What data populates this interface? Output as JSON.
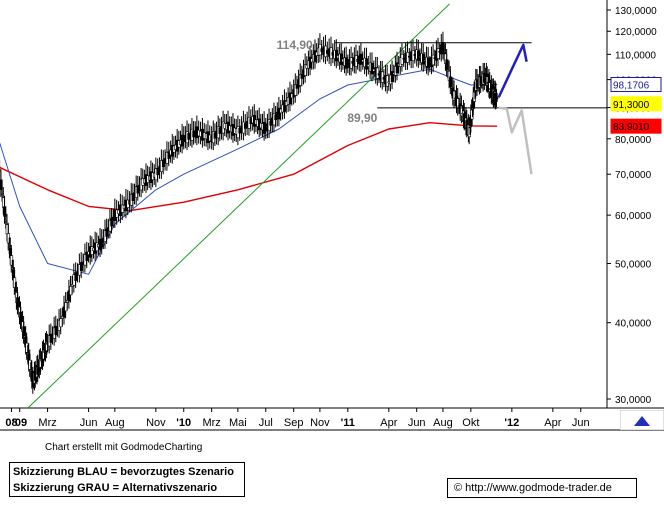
{
  "chart_data": {
    "type": "candlestick",
    "y_scale": "log",
    "ylim": [
      29000,
      135000
    ],
    "y_ticks": [
      {
        "value": 30000,
        "label": "30,0000"
      },
      {
        "value": 40000,
        "label": "40,0000"
      },
      {
        "value": 50000,
        "label": "50,0000"
      },
      {
        "value": 60000,
        "label": "60,0000"
      },
      {
        "value": 70000,
        "label": "70,0000"
      },
      {
        "value": 80000,
        "label": "80,0000"
      },
      {
        "value": 90000,
        "label": "90,0000"
      },
      {
        "value": 100000,
        "label": "100,0000"
      },
      {
        "value": 110000,
        "label": "110,0000"
      },
      {
        "value": 120000,
        "label": "120,0000"
      },
      {
        "value": 130000,
        "label": "130,0000"
      }
    ],
    "x_ticks": [
      {
        "t": 2008.95,
        "label": "08",
        "bold": true
      },
      {
        "t": 2009.0,
        "label": "'09",
        "bold": true
      },
      {
        "t": 2009.17,
        "label": "Mrz",
        "bold": false
      },
      {
        "t": 2009.42,
        "label": "Jun",
        "bold": false
      },
      {
        "t": 2009.58,
        "label": "Aug",
        "bold": false
      },
      {
        "t": 2009.83,
        "label": "Nov",
        "bold": false
      },
      {
        "t": 2010.0,
        "label": "'10",
        "bold": true
      },
      {
        "t": 2010.17,
        "label": "Mrz",
        "bold": false
      },
      {
        "t": 2010.33,
        "label": "Mai",
        "bold": false
      },
      {
        "t": 2010.5,
        "label": "Jul",
        "bold": false
      },
      {
        "t": 2010.67,
        "label": "Sep",
        "bold": false
      },
      {
        "t": 2010.83,
        "label": "Nov",
        "bold": false
      },
      {
        "t": 2011.0,
        "label": "'11",
        "bold": true
      },
      {
        "t": 2011.25,
        "label": "Apr",
        "bold": false
      },
      {
        "t": 2011.42,
        "label": "Jun",
        "bold": false
      },
      {
        "t": 2011.58,
        "label": "Aug",
        "bold": false
      },
      {
        "t": 2011.75,
        "label": "Okt",
        "bold": false
      },
      {
        "t": 2012.0,
        "label": "'12",
        "bold": true
      },
      {
        "t": 2012.25,
        "label": "Apr",
        "bold": false
      },
      {
        "t": 2012.42,
        "label": "Jun",
        "bold": false
      }
    ],
    "price_path": [
      {
        "t": 2008.87,
        "v": 72000
      },
      {
        "t": 2008.93,
        "v": 55000
      },
      {
        "t": 2008.98,
        "v": 44000
      },
      {
        "t": 2009.03,
        "v": 38000
      },
      {
        "t": 2009.08,
        "v": 32000
      },
      {
        "t": 2009.12,
        "v": 34000
      },
      {
        "t": 2009.17,
        "v": 37000
      },
      {
        "t": 2009.25,
        "v": 40000
      },
      {
        "t": 2009.33,
        "v": 47000
      },
      {
        "t": 2009.42,
        "v": 52000
      },
      {
        "t": 2009.5,
        "v": 54000
      },
      {
        "t": 2009.58,
        "v": 60000
      },
      {
        "t": 2009.67,
        "v": 63000
      },
      {
        "t": 2009.75,
        "v": 68000
      },
      {
        "t": 2009.83,
        "v": 70000
      },
      {
        "t": 2009.92,
        "v": 76000
      },
      {
        "t": 2010.0,
        "v": 80000
      },
      {
        "t": 2010.08,
        "v": 82000
      },
      {
        "t": 2010.17,
        "v": 80000
      },
      {
        "t": 2010.25,
        "v": 84000
      },
      {
        "t": 2010.33,
        "v": 82000
      },
      {
        "t": 2010.42,
        "v": 86000
      },
      {
        "t": 2010.5,
        "v": 83000
      },
      {
        "t": 2010.58,
        "v": 88000
      },
      {
        "t": 2010.67,
        "v": 95000
      },
      {
        "t": 2010.75,
        "v": 105000
      },
      {
        "t": 2010.83,
        "v": 112000
      },
      {
        "t": 2010.92,
        "v": 110000
      },
      {
        "t": 2011.0,
        "v": 106000
      },
      {
        "t": 2011.08,
        "v": 108000
      },
      {
        "t": 2011.17,
        "v": 103000
      },
      {
        "t": 2011.25,
        "v": 99000
      },
      {
        "t": 2011.33,
        "v": 108000
      },
      {
        "t": 2011.42,
        "v": 110000
      },
      {
        "t": 2011.5,
        "v": 106000
      },
      {
        "t": 2011.58,
        "v": 113000
      },
      {
        "t": 2011.64,
        "v": 95000
      },
      {
        "t": 2011.7,
        "v": 88000
      },
      {
        "t": 2011.74,
        "v": 82000
      },
      {
        "t": 2011.78,
        "v": 98000
      },
      {
        "t": 2011.84,
        "v": 101000
      },
      {
        "t": 2011.88,
        "v": 95000
      },
      {
        "t": 2011.91,
        "v": 93000
      }
    ],
    "sma_blue": [
      {
        "t": 2008.87,
        "v": 80000
      },
      {
        "t": 2009.0,
        "v": 62000
      },
      {
        "t": 2009.17,
        "v": 50000
      },
      {
        "t": 2009.42,
        "v": 48000
      },
      {
        "t": 2009.58,
        "v": 58000
      },
      {
        "t": 2009.83,
        "v": 66000
      },
      {
        "t": 2010.0,
        "v": 70000
      },
      {
        "t": 2010.33,
        "v": 77000
      },
      {
        "t": 2010.58,
        "v": 83000
      },
      {
        "t": 2010.83,
        "v": 93000
      },
      {
        "t": 2011.0,
        "v": 98000
      },
      {
        "t": 2011.25,
        "v": 101000
      },
      {
        "t": 2011.5,
        "v": 104000
      },
      {
        "t": 2011.62,
        "v": 101000
      },
      {
        "t": 2011.75,
        "v": 98000
      },
      {
        "t": 2011.91,
        "v": 98170
      }
    ],
    "sma_red": [
      {
        "t": 2008.87,
        "v": 72000
      },
      {
        "t": 2009.17,
        "v": 66000
      },
      {
        "t": 2009.42,
        "v": 62000
      },
      {
        "t": 2009.67,
        "v": 61000
      },
      {
        "t": 2010.0,
        "v": 63000
      },
      {
        "t": 2010.33,
        "v": 66000
      },
      {
        "t": 2010.67,
        "v": 70000
      },
      {
        "t": 2011.0,
        "v": 78000
      },
      {
        "t": 2011.25,
        "v": 83000
      },
      {
        "t": 2011.5,
        "v": 85000
      },
      {
        "t": 2011.75,
        "v": 84000
      },
      {
        "t": 2011.91,
        "v": 83901
      }
    ],
    "trendline_green": [
      {
        "t": 2009.05,
        "v": 29000
      },
      {
        "t": 2011.62,
        "v": 133000
      }
    ],
    "resistance": {
      "value": 114900,
      "label": "114,90",
      "t_start": 2010.92,
      "t_end": 2012.12
    },
    "support": {
      "value": 89900,
      "label": "89,90",
      "t_start": 2011.18,
      "t_end": 2012.55
    },
    "scenario_blue": [
      {
        "t": 2011.92,
        "v": 93500
      },
      {
        "t": 2012.0,
        "v": 104000
      },
      {
        "t": 2012.07,
        "v": 114000
      },
      {
        "t": 2012.09,
        "v": 107000
      }
    ],
    "scenario_gray": [
      {
        "t": 2011.92,
        "v": 90000
      },
      {
        "t": 2011.97,
        "v": 89500
      },
      {
        "t": 2012.0,
        "v": 82000
      },
      {
        "t": 2012.06,
        "v": 89000
      },
      {
        "t": 2012.12,
        "v": 70000
      }
    ],
    "price_labels": [
      {
        "label": "98,1706",
        "value": 98170,
        "bg": "#ffffff",
        "fg": "#1a1aa0",
        "border": "#1a1aa0"
      },
      {
        "label": "91,3000",
        "value": 91300,
        "bg": "#ffff00",
        "fg": "#000000",
        "border": "#ffff00"
      },
      {
        "label": "83,9010",
        "value": 83901,
        "bg": "#ff0000",
        "fg": "#000000",
        "border": "#ff0000"
      }
    ],
    "colors": {
      "price": "#000000",
      "sma_blue": "#3050c0",
      "sma_red": "#e00000",
      "trendline": "#20a020",
      "level_lines": "#000000",
      "scenario_blue": "#2020c0",
      "scenario_gray": "#c0c0c0",
      "annotation_text": "#808080"
    }
  },
  "credit": "Chart erstellt mit GodmodeCharting",
  "legend_box": {
    "line1": "Skizzierung BLAU = bevorzugtes Szenario",
    "line2": "Skizzierung GRAU = Alternativszenario"
  },
  "url": "http://www.godmode-trader.de",
  "copyright_symbol": "©"
}
